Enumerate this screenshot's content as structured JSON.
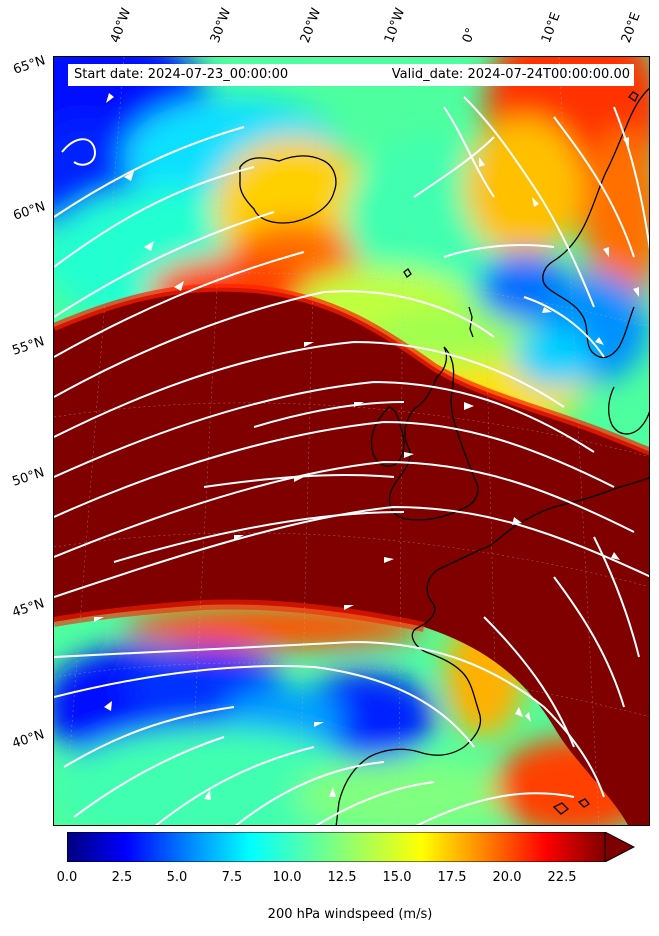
{
  "header": {
    "start_date": "Start date: 2024-07-23_00:00:00",
    "valid_date": "Valid_date: 2024-07-24T00:00:00.00"
  },
  "map": {
    "field": "200 hPa windspeed",
    "colormap": "jet",
    "streamline_color": "#ffffff",
    "coastline_color": "#000000",
    "longitude_labels": [
      "40°W",
      "30°W",
      "20°W",
      "10°W",
      "0°",
      "10°E",
      "20°E"
    ],
    "latitude_labels": [
      "65°N",
      "60°N",
      "55°N",
      "50°N",
      "45°N",
      "40°N"
    ]
  },
  "colorbar": {
    "label": "200 hPa windspeed (m/s)",
    "range": [
      0,
      25
    ],
    "extend": "max",
    "ticks": [
      "0.0",
      "2.5",
      "5.0",
      "7.5",
      "10.0",
      "12.5",
      "15.0",
      "17.5",
      "20.0",
      "22.5"
    ],
    "colors": [
      "#00007f",
      "#0000ff",
      "#007fff",
      "#00ffff",
      "#7fff7f",
      "#ffff00",
      "#ff7f00",
      "#ff0000",
      "#7f0000"
    ]
  }
}
